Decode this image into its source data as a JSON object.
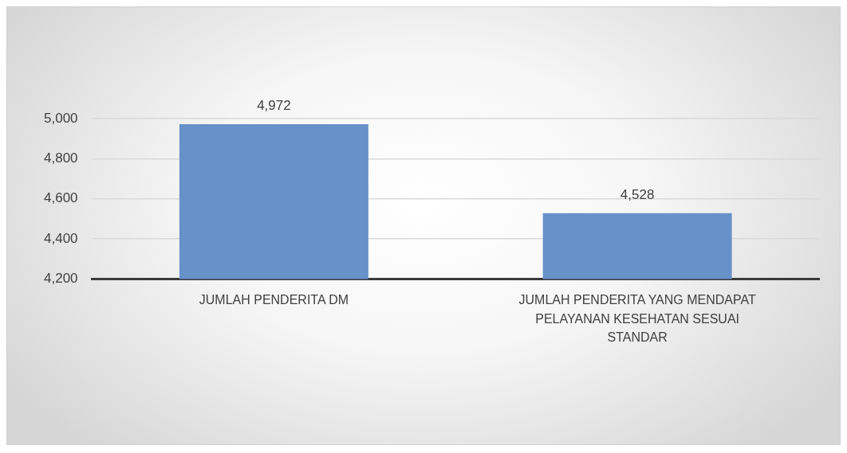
{
  "chart_data": {
    "type": "bar",
    "categories": [
      "JUMLAH PENDERITA DM",
      "JUMLAH PENDERITA YANG MENDAPAT PELAYANAN KESEHATAN SESUAI STANDAR"
    ],
    "values": [
      4972,
      4528
    ],
    "color": "#6791c9",
    "value_labels": [
      "4,972",
      "4,528"
    ],
    "ylim": [
      4200,
      5000
    ],
    "yticks": [
      {
        "value": 4200,
        "label": "4,200"
      },
      {
        "value": 4400,
        "label": "4,400"
      },
      {
        "value": 4600,
        "label": "4,600"
      },
      {
        "value": 4800,
        "label": "4,800"
      },
      {
        "value": 5000,
        "label": "5,000"
      }
    ],
    "grid": "y",
    "legend": false
  }
}
